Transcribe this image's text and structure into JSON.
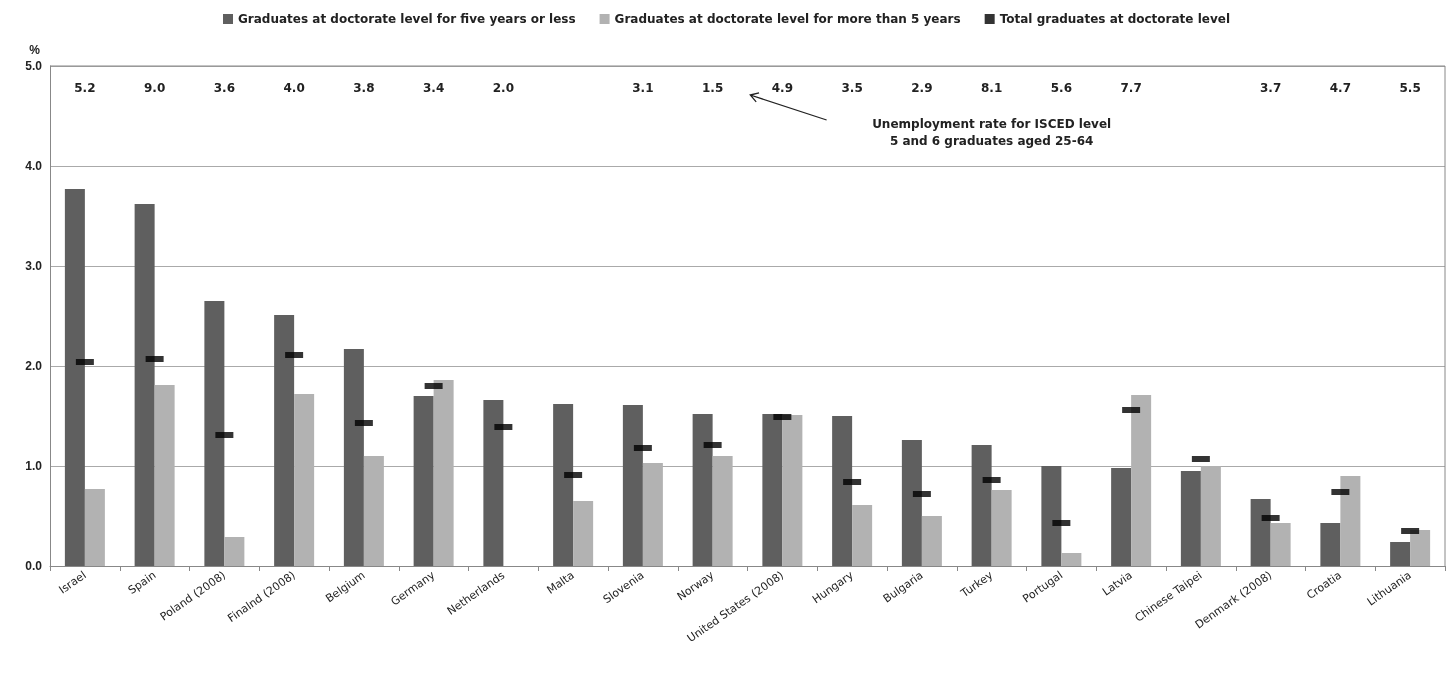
{
  "chart_data": {
    "type": "bar",
    "ylabel": "%",
    "categories": [
      "Israel",
      "Spain",
      "Poland (2008)",
      "Finalnd (2008)",
      "Belgium",
      "Germany",
      "Netherlands",
      "Malta",
      "Slovenia",
      "Norway",
      "United States (2008)",
      "Hungary",
      "Bulgaria",
      "Turkey",
      "Portugal",
      "Latvia",
      "Chinese Taipei",
      "Denmark (2008)",
      "Croatia",
      "Lithuania"
    ],
    "series": [
      {
        "name": "Graduates at doctorate level for five years or less",
        "color": "#5f5f5f",
        "values": [
          3.77,
          3.62,
          2.65,
          2.51,
          2.17,
          1.7,
          1.66,
          1.62,
          1.61,
          1.52,
          1.52,
          1.5,
          1.26,
          1.21,
          1.0,
          0.98,
          0.95,
          0.67,
          0.43,
          0.24
        ]
      },
      {
        "name": "Graduates at doctorate level for more than 5 years",
        "color": "#b2b2b2",
        "values": [
          0.77,
          1.81,
          0.29,
          1.72,
          1.1,
          1.86,
          null,
          0.65,
          1.03,
          1.1,
          1.51,
          0.61,
          0.5,
          0.76,
          0.13,
          1.71,
          1.0,
          0.43,
          0.9,
          0.36
        ]
      },
      {
        "name": "Total graduates at doctorate level",
        "color": "#000000",
        "type": "scatter",
        "values": [
          2.04,
          2.07,
          1.31,
          2.11,
          1.43,
          1.8,
          1.39,
          0.91,
          1.18,
          1.21,
          1.49,
          0.84,
          0.72,
          0.86,
          0.43,
          1.56,
          1.07,
          0.48,
          0.74,
          0.35
        ]
      }
    ],
    "ylim": [
      0,
      5
    ],
    "yticks": [
      {
        "value": 0,
        "label": "0.0"
      },
      {
        "value": 1,
        "label": "1.0"
      },
      {
        "value": 2,
        "label": "2.0"
      },
      {
        "value": 3,
        "label": "3.0"
      },
      {
        "value": 4,
        "label": "4.0"
      },
      {
        "value": 5,
        "label": "5.0"
      }
    ],
    "grid": "y",
    "legend": "top",
    "annotations": [
      "5.2",
      "9.0",
      "3.6",
      "4.0",
      "3.8",
      "3.4",
      "2.0",
      null,
      "3.1",
      "1.5",
      "4.9",
      "3.5",
      "2.9",
      "8.1",
      "5.6",
      "7.7",
      null,
      "3.7",
      "4.7",
      "5.5",
      "Unemployment rate for ISCED level\n5 and 6 graduates aged 25-64"
    ]
  }
}
